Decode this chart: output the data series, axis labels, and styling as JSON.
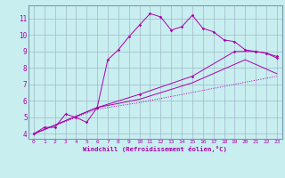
{
  "xlabel": "Windchill (Refroidissement éolien,°C)",
  "bg_color": "#c8eef0",
  "line_color": "#aa00aa",
  "xlim": [
    -0.5,
    23.5
  ],
  "ylim": [
    3.7,
    11.8
  ],
  "xticks": [
    0,
    1,
    2,
    3,
    4,
    5,
    6,
    7,
    8,
    9,
    10,
    11,
    12,
    13,
    14,
    15,
    16,
    17,
    18,
    19,
    20,
    21,
    22,
    23
  ],
  "yticks": [
    4,
    5,
    6,
    7,
    8,
    9,
    10,
    11
  ],
  "grid_color": "#a0b8c8",
  "line1_x": [
    0,
    1,
    2,
    3,
    4,
    5,
    6,
    7,
    8,
    9,
    10,
    11,
    12,
    13,
    14,
    15,
    16,
    17,
    18,
    19,
    20,
    21,
    22,
    23
  ],
  "line1_y": [
    4.0,
    4.4,
    4.4,
    5.2,
    5.0,
    4.7,
    5.6,
    8.5,
    9.1,
    9.9,
    10.6,
    11.3,
    11.1,
    10.3,
    10.5,
    11.2,
    10.4,
    10.2,
    9.7,
    9.6,
    9.1,
    9.0,
    8.9,
    8.6
  ],
  "line2_x": [
    0,
    6,
    10,
    15,
    19,
    21,
    22,
    23
  ],
  "line2_y": [
    4.0,
    5.6,
    6.4,
    7.5,
    9.0,
    9.0,
    8.9,
    8.7
  ],
  "line3_x": [
    0,
    6,
    10,
    15,
    20,
    23
  ],
  "line3_y": [
    4.0,
    5.6,
    6.1,
    7.1,
    8.5,
    7.65
  ],
  "line4_x": [
    0,
    6,
    10,
    23
  ],
  "line4_y": [
    4.0,
    5.5,
    5.9,
    7.5
  ]
}
